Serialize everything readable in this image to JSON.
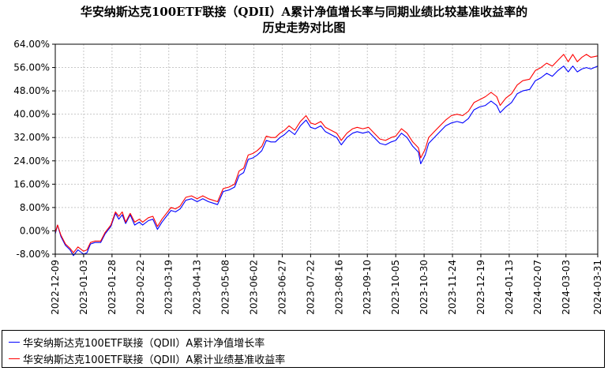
{
  "chart_data": {
    "type": "line",
    "title": "华安纳斯达克100ETF联接（QDII）A累计净值增长率与同期业绩比较基准收益率的",
    "subtitle": "历史走势对比图",
    "x_ticks": [
      "2022-12-09",
      "2023-01-03",
      "2023-01-28",
      "2023-02-22",
      "2023-03-19",
      "2023-04-13",
      "2023-05-08",
      "2023-06-02",
      "2023-06-27",
      "2023-07-22",
      "2023-08-16",
      "2023-09-10",
      "2023-10-05",
      "2023-10-30",
      "2023-11-24",
      "2023-12-19",
      "2024-01-13",
      "2024-02-07",
      "2024-03-03",
      "2024-03-31"
    ],
    "y_ticks": [
      "-8.00%",
      "0.00%",
      "8.00%",
      "16.00%",
      "24.00%",
      "32.00%",
      "40.00%",
      "48.00%",
      "56.00%",
      "64.00%"
    ],
    "ylim": [
      -8,
      64
    ],
    "grid": true,
    "legend_placement": "bottom",
    "series": [
      {
        "name": "华安纳斯达克100ETF联接（QDII）A累计净值增长率",
        "color": "#0000ff",
        "points": [
          [
            "2022-12-09",
            -1.0
          ],
          [
            "2022-12-11",
            2.0
          ],
          [
            "2022-12-14",
            -2.0
          ],
          [
            "2022-12-18",
            -5.0
          ],
          [
            "2022-12-22",
            -6.5
          ],
          [
            "2022-12-25",
            -8.5
          ],
          [
            "2022-12-29",
            -6.5
          ],
          [
            "2023-01-03",
            -8.0
          ],
          [
            "2023-01-06",
            -7.5
          ],
          [
            "2023-01-09",
            -4.5
          ],
          [
            "2023-01-13",
            -4.0
          ],
          [
            "2023-01-18",
            -4.0
          ],
          [
            "2023-01-22",
            -1.0
          ],
          [
            "2023-01-27",
            1.5
          ],
          [
            "2023-01-31",
            6.0
          ],
          [
            "2023-02-03",
            4.0
          ],
          [
            "2023-02-06",
            5.5
          ],
          [
            "2023-02-09",
            2.5
          ],
          [
            "2023-02-13",
            5.5
          ],
          [
            "2023-02-17",
            2.0
          ],
          [
            "2023-02-21",
            3.0
          ],
          [
            "2023-02-24",
            2.0
          ],
          [
            "2023-03-01",
            3.5
          ],
          [
            "2023-03-05",
            4.0
          ],
          [
            "2023-03-09",
            0.5
          ],
          [
            "2023-03-13",
            3.0
          ],
          [
            "2023-03-17",
            5.0
          ],
          [
            "2023-03-21",
            7.0
          ],
          [
            "2023-03-25",
            6.5
          ],
          [
            "2023-03-29",
            7.5
          ],
          [
            "2023-04-03",
            10.5
          ],
          [
            "2023-04-08",
            11.0
          ],
          [
            "2023-04-13",
            10.0
          ],
          [
            "2023-04-18",
            11.0
          ],
          [
            "2023-04-23",
            10.0
          ],
          [
            "2023-04-27",
            9.5
          ],
          [
            "2023-05-01",
            9.0
          ],
          [
            "2023-05-06",
            13.5
          ],
          [
            "2023-05-11",
            14.0
          ],
          [
            "2023-05-16",
            15.0
          ],
          [
            "2023-05-20",
            19.0
          ],
          [
            "2023-05-24",
            20.0
          ],
          [
            "2023-05-28",
            24.5
          ],
          [
            "2023-06-01",
            25.0
          ],
          [
            "2023-06-05",
            26.0
          ],
          [
            "2023-06-09",
            27.5
          ],
          [
            "2023-06-13",
            31.0
          ],
          [
            "2023-06-17",
            30.5
          ],
          [
            "2023-06-21",
            30.5
          ],
          [
            "2023-06-25",
            32.0
          ],
          [
            "2023-06-29",
            33.0
          ],
          [
            "2023-07-03",
            34.5
          ],
          [
            "2023-07-08",
            33.0
          ],
          [
            "2023-07-13",
            36.0
          ],
          [
            "2023-07-18",
            38.0
          ],
          [
            "2023-07-22",
            35.5
          ],
          [
            "2023-07-26",
            35.0
          ],
          [
            "2023-07-31",
            36.0
          ],
          [
            "2023-08-04",
            34.0
          ],
          [
            "2023-08-09",
            33.0
          ],
          [
            "2023-08-14",
            32.0
          ],
          [
            "2023-08-18",
            29.5
          ],
          [
            "2023-08-23",
            32.0
          ],
          [
            "2023-08-28",
            33.5
          ],
          [
            "2023-09-01",
            34.0
          ],
          [
            "2023-09-06",
            33.5
          ],
          [
            "2023-09-11",
            34.0
          ],
          [
            "2023-09-16",
            32.0
          ],
          [
            "2023-09-21",
            30.0
          ],
          [
            "2023-09-26",
            29.5
          ],
          [
            "2023-10-01",
            30.5
          ],
          [
            "2023-10-05",
            31.0
          ],
          [
            "2023-10-10",
            33.5
          ],
          [
            "2023-10-15",
            32.0
          ],
          [
            "2023-10-20",
            29.0
          ],
          [
            "2023-10-25",
            27.0
          ],
          [
            "2023-10-27",
            23.0
          ],
          [
            "2023-10-31",
            26.0
          ],
          [
            "2023-11-03",
            30.0
          ],
          [
            "2023-11-08",
            32.0
          ],
          [
            "2023-11-13",
            34.0
          ],
          [
            "2023-11-18",
            36.0
          ],
          [
            "2023-11-23",
            37.0
          ],
          [
            "2023-11-28",
            37.5
          ],
          [
            "2023-12-03",
            37.0
          ],
          [
            "2023-12-08",
            38.5
          ],
          [
            "2023-12-13",
            41.5
          ],
          [
            "2023-12-18",
            42.5
          ],
          [
            "2023-12-23",
            43.0
          ],
          [
            "2023-12-28",
            44.5
          ],
          [
            "2024-01-02",
            43.0
          ],
          [
            "2024-01-05",
            40.5
          ],
          [
            "2024-01-10",
            42.5
          ],
          [
            "2024-01-15",
            44.0
          ],
          [
            "2024-01-20",
            47.0
          ],
          [
            "2024-01-25",
            48.0
          ],
          [
            "2024-01-31",
            48.5
          ],
          [
            "2024-02-05",
            51.5
          ],
          [
            "2024-02-10",
            52.5
          ],
          [
            "2024-02-15",
            54.0
          ],
          [
            "2024-02-20",
            53.0
          ],
          [
            "2024-02-25",
            55.0
          ],
          [
            "2024-03-01",
            56.5
          ],
          [
            "2024-03-05",
            54.5
          ],
          [
            "2024-03-09",
            56.5
          ],
          [
            "2024-03-13",
            54.5
          ],
          [
            "2024-03-17",
            55.5
          ],
          [
            "2024-03-21",
            56.0
          ],
          [
            "2024-03-25",
            55.5
          ],
          [
            "2024-03-31",
            56.5
          ]
        ]
      },
      {
        "name": "华安纳斯达克100ETF联接（QDII）A累计业绩基准收益率",
        "color": "#ff0000",
        "points": [
          [
            "2022-12-09",
            -0.5
          ],
          [
            "2022-12-11",
            2.0
          ],
          [
            "2022-12-14",
            -1.5
          ],
          [
            "2022-12-18",
            -4.5
          ],
          [
            "2022-12-22",
            -6.0
          ],
          [
            "2022-12-25",
            -7.5
          ],
          [
            "2022-12-29",
            -5.5
          ],
          [
            "2023-01-03",
            -7.0
          ],
          [
            "2023-01-06",
            -6.5
          ],
          [
            "2023-01-09",
            -4.0
          ],
          [
            "2023-01-13",
            -3.5
          ],
          [
            "2023-01-18",
            -3.5
          ],
          [
            "2023-01-22",
            -0.5
          ],
          [
            "2023-01-27",
            2.0
          ],
          [
            "2023-01-31",
            6.5
          ],
          [
            "2023-02-03",
            5.0
          ],
          [
            "2023-02-06",
            6.5
          ],
          [
            "2023-02-09",
            3.0
          ],
          [
            "2023-02-13",
            6.0
          ],
          [
            "2023-02-17",
            3.0
          ],
          [
            "2023-02-21",
            4.0
          ],
          [
            "2023-02-24",
            3.0
          ],
          [
            "2023-03-01",
            4.5
          ],
          [
            "2023-03-05",
            5.0
          ],
          [
            "2023-03-09",
            1.5
          ],
          [
            "2023-03-13",
            4.0
          ],
          [
            "2023-03-17",
            6.0
          ],
          [
            "2023-03-21",
            8.0
          ],
          [
            "2023-03-25",
            7.5
          ],
          [
            "2023-03-29",
            8.5
          ],
          [
            "2023-04-03",
            11.5
          ],
          [
            "2023-04-08",
            12.0
          ],
          [
            "2023-04-13",
            11.0
          ],
          [
            "2023-04-18",
            12.0
          ],
          [
            "2023-04-23",
            11.0
          ],
          [
            "2023-04-27",
            10.5
          ],
          [
            "2023-05-01",
            10.0
          ],
          [
            "2023-05-06",
            14.5
          ],
          [
            "2023-05-11",
            15.0
          ],
          [
            "2023-05-16",
            16.0
          ],
          [
            "2023-05-20",
            20.5
          ],
          [
            "2023-05-24",
            21.5
          ],
          [
            "2023-05-28",
            26.0
          ],
          [
            "2023-06-01",
            26.5
          ],
          [
            "2023-06-05",
            27.5
          ],
          [
            "2023-06-09",
            29.0
          ],
          [
            "2023-06-13",
            32.5
          ],
          [
            "2023-06-17",
            32.0
          ],
          [
            "2023-06-21",
            32.0
          ],
          [
            "2023-06-25",
            33.5
          ],
          [
            "2023-06-29",
            34.5
          ],
          [
            "2023-07-03",
            36.0
          ],
          [
            "2023-07-08",
            34.5
          ],
          [
            "2023-07-13",
            37.5
          ],
          [
            "2023-07-18",
            39.5
          ],
          [
            "2023-07-22",
            37.0
          ],
          [
            "2023-07-26",
            36.5
          ],
          [
            "2023-07-31",
            37.5
          ],
          [
            "2023-08-04",
            35.5
          ],
          [
            "2023-08-09",
            34.5
          ],
          [
            "2023-08-14",
            33.5
          ],
          [
            "2023-08-18",
            31.0
          ],
          [
            "2023-08-23",
            33.5
          ],
          [
            "2023-08-28",
            35.0
          ],
          [
            "2023-09-01",
            35.5
          ],
          [
            "2023-09-06",
            35.0
          ],
          [
            "2023-09-11",
            35.5
          ],
          [
            "2023-09-16",
            33.5
          ],
          [
            "2023-09-21",
            31.5
          ],
          [
            "2023-09-26",
            31.0
          ],
          [
            "2023-10-01",
            32.0
          ],
          [
            "2023-10-05",
            32.5
          ],
          [
            "2023-10-10",
            35.0
          ],
          [
            "2023-10-15",
            33.5
          ],
          [
            "2023-10-20",
            30.5
          ],
          [
            "2023-10-25",
            28.5
          ],
          [
            "2023-10-27",
            25.0
          ],
          [
            "2023-10-31",
            28.0
          ],
          [
            "2023-11-03",
            32.0
          ],
          [
            "2023-11-08",
            34.0
          ],
          [
            "2023-11-13",
            36.0
          ],
          [
            "2023-11-18",
            38.0
          ],
          [
            "2023-11-23",
            39.5
          ],
          [
            "2023-11-28",
            40.0
          ],
          [
            "2023-12-03",
            39.5
          ],
          [
            "2023-12-08",
            41.0
          ],
          [
            "2023-12-13",
            44.0
          ],
          [
            "2023-12-18",
            45.0
          ],
          [
            "2023-12-23",
            46.0
          ],
          [
            "2023-12-28",
            47.5
          ],
          [
            "2024-01-02",
            46.0
          ],
          [
            "2024-01-05",
            43.0
          ],
          [
            "2024-01-10",
            45.5
          ],
          [
            "2024-01-15",
            47.0
          ],
          [
            "2024-01-20",
            50.0
          ],
          [
            "2024-01-25",
            51.5
          ],
          [
            "2024-01-31",
            52.0
          ],
          [
            "2024-02-05",
            55.0
          ],
          [
            "2024-02-10",
            56.0
          ],
          [
            "2024-02-15",
            57.5
          ],
          [
            "2024-02-20",
            56.5
          ],
          [
            "2024-02-25",
            58.5
          ],
          [
            "2024-03-01",
            60.5
          ],
          [
            "2024-03-05",
            58.0
          ],
          [
            "2024-03-09",
            60.5
          ],
          [
            "2024-03-13",
            58.0
          ],
          [
            "2024-03-17",
            59.5
          ],
          [
            "2024-03-21",
            60.5
          ],
          [
            "2024-03-25",
            59.5
          ],
          [
            "2024-03-31",
            60.0
          ]
        ]
      }
    ]
  }
}
